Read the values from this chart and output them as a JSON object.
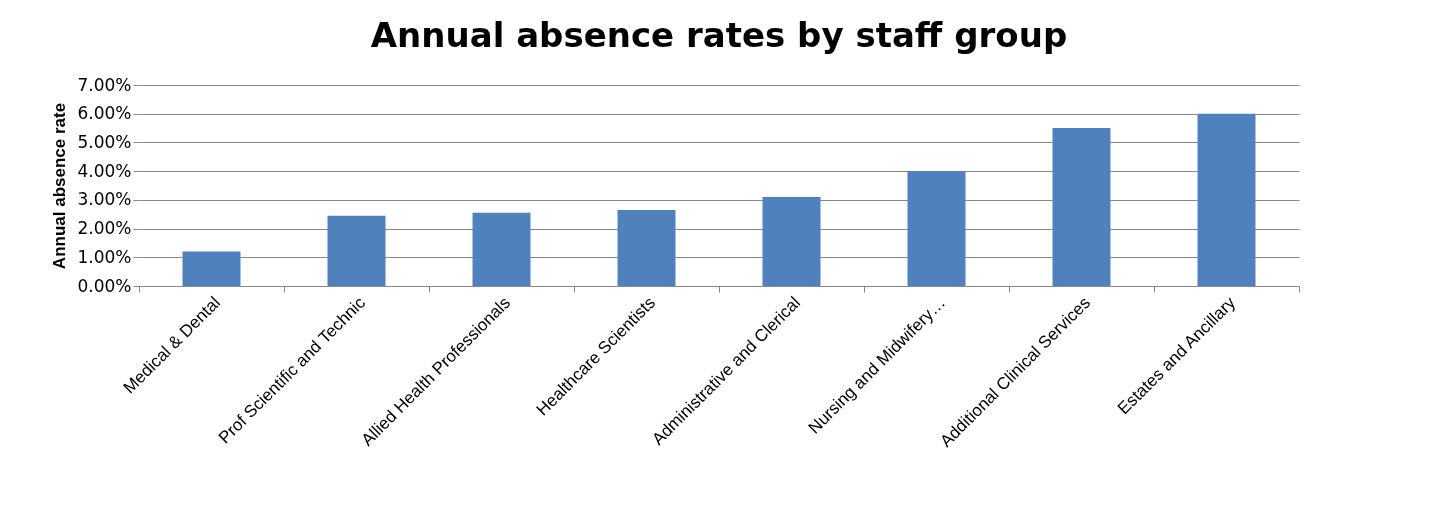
{
  "chart_data": {
    "type": "bar",
    "title": "Annual absence rates by staff group",
    "ylabel": "Annual absence rate",
    "categories": [
      "Medical & Dental",
      "Prof Scientific and Technic",
      "Allied Health Professionals",
      "Healthcare Scientists",
      "Administrative and Clerical",
      "Nursing and Midwifery…",
      "Additional Clinical Services",
      "Estates and Ancillary"
    ],
    "values": [
      1.2,
      2.45,
      2.55,
      2.65,
      3.1,
      4.0,
      5.5,
      6.0
    ],
    "color": "#4f81bd",
    "ylim": [
      0,
      7
    ],
    "yticks": [
      {
        "value": 0,
        "label": "0.00%"
      },
      {
        "value": 1,
        "label": "1.00%"
      },
      {
        "value": 2,
        "label": "2.00%"
      },
      {
        "value": 3,
        "label": "3.00%"
      },
      {
        "value": 4,
        "label": "4.00%"
      },
      {
        "value": 5,
        "label": "5.00%"
      },
      {
        "value": 6,
        "label": "6.00%"
      },
      {
        "value": 7,
        "label": "7.00%"
      }
    ],
    "grid": "y"
  }
}
